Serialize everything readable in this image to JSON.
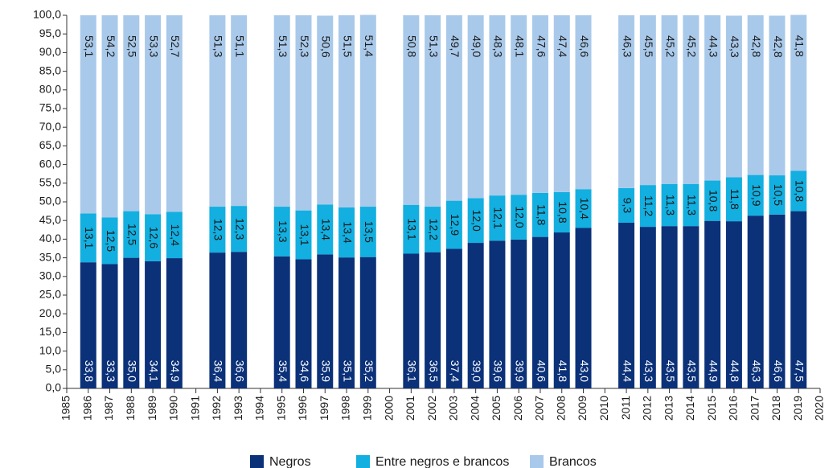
{
  "chart_data": {
    "type": "stacked_bar",
    "x": [
      1986,
      1987,
      1988,
      1989,
      1990,
      1992,
      1993,
      1995,
      1996,
      1997,
      1998,
      1999,
      2001,
      2002,
      2003,
      2004,
      2005,
      2006,
      2007,
      2008,
      2009,
      2011,
      2012,
      2013,
      2014,
      2015,
      2016,
      2017,
      2018,
      2019
    ],
    "series": [
      {
        "name": "Negros",
        "color": "#0b3179",
        "values": [
          33.8,
          33.3,
          35.0,
          34.1,
          34.9,
          36.4,
          36.6,
          35.4,
          34.6,
          35.9,
          35.1,
          35.2,
          36.1,
          36.5,
          37.4,
          39.0,
          39.6,
          39.9,
          40.6,
          41.8,
          43.0,
          44.4,
          43.3,
          43.5,
          43.5,
          44.9,
          44.8,
          46.3,
          46.6,
          47.5
        ],
        "value_labels": [
          "33,8",
          "33,3",
          "35,0",
          "34,1",
          "34,9",
          "36,4",
          "36,6",
          "35,4",
          "34,6",
          "35,9",
          "35,1",
          "35,2",
          "36,1",
          "36,5",
          "37,4",
          "39,0",
          "39,6",
          "39,9",
          "40,6",
          "41,8",
          "43,0",
          "44,4",
          "43,3",
          "43,5",
          "43,5",
          "44,9",
          "44,8",
          "46,3",
          "46,6",
          "47,5"
        ]
      },
      {
        "name": "Entre negros e brancos",
        "color": "#12afe0",
        "values": [
          13.1,
          12.5,
          12.5,
          12.6,
          12.4,
          12.3,
          12.3,
          13.3,
          13.1,
          13.4,
          13.4,
          13.5,
          13.1,
          12.2,
          12.9,
          12.0,
          12.1,
          12.0,
          11.8,
          10.8,
          10.4,
          9.3,
          11.2,
          11.3,
          11.3,
          10.8,
          11.8,
          10.9,
          10.5,
          10.8
        ],
        "value_labels": [
          "13,1",
          "12,5",
          "12,5",
          "12,6",
          "12,4",
          "12,3",
          "12,3",
          "13,3",
          "13,1",
          "13,4",
          "13,4",
          "13,5",
          "13,1",
          "12,2",
          "12,9",
          "12,0",
          "12,1",
          "12,0",
          "11,8",
          "10,8",
          "10,4",
          "9,3",
          "11,2",
          "11,3",
          "11,3",
          "10,8",
          "11,8",
          "10,9",
          "10,5",
          "10,8"
        ]
      },
      {
        "name": "Brancos",
        "color": "#a9c9ea",
        "values": [
          53.1,
          54.2,
          52.5,
          53.3,
          52.7,
          51.3,
          51.1,
          51.3,
          52.3,
          50.6,
          51.5,
          51.4,
          50.8,
          51.3,
          49.7,
          49.0,
          48.3,
          48.1,
          47.6,
          47.4,
          46.6,
          46.3,
          45.5,
          45.2,
          45.2,
          44.3,
          43.3,
          42.8,
          42.8,
          41.8
        ],
        "value_labels": [
          "53,1",
          "54,2",
          "52,5",
          "53,3",
          "52,7",
          "51,3",
          "51,1",
          "51,3",
          "52,3",
          "50,6",
          "51,5",
          "51,4",
          "50,8",
          "51,3",
          "49,7",
          "49,0",
          "48,3",
          "48,1",
          "47,6",
          "47,4",
          "46,6",
          "46,3",
          "45,5",
          "45,2",
          "45,2",
          "44,3",
          "43,3",
          "42,8",
          "42,8",
          "41,8"
        ]
      }
    ],
    "xlim": [
      1985,
      2020
    ],
    "xticks": [
      1985,
      1986,
      1987,
      1988,
      1989,
      1990,
      1991,
      1992,
      1993,
      1994,
      1995,
      1996,
      1997,
      1998,
      1999,
      2000,
      2001,
      2002,
      2003,
      2004,
      2005,
      2006,
      2007,
      2008,
      2009,
      2010,
      2011,
      2012,
      2013,
      2014,
      2015,
      2016,
      2017,
      2018,
      2019,
      2020
    ],
    "ylim": [
      0,
      100
    ],
    "yticks": [
      {
        "value": 0,
        "label": "0,0"
      },
      {
        "value": 5,
        "label": "5,0"
      },
      {
        "value": 10,
        "label": "10,0"
      },
      {
        "value": 15,
        "label": "15,0"
      },
      {
        "value": 20,
        "label": "20,0"
      },
      {
        "value": 25,
        "label": "25,0"
      },
      {
        "value": 30,
        "label": "30,0"
      },
      {
        "value": 35,
        "label": "35,0"
      },
      {
        "value": 40,
        "label": "40,0"
      },
      {
        "value": 45,
        "label": "45,0"
      },
      {
        "value": 50,
        "label": "50,0"
      },
      {
        "value": 55,
        "label": "55,0"
      },
      {
        "value": 60,
        "label": "60,0"
      },
      {
        "value": 65,
        "label": "65,0"
      },
      {
        "value": 70,
        "label": "70,0"
      },
      {
        "value": 75,
        "label": "75,0"
      },
      {
        "value": 80,
        "label": "80,0"
      },
      {
        "value": 85,
        "label": "85,0"
      },
      {
        "value": 90,
        "label": "90,0"
      },
      {
        "value": 95,
        "label": "95,0"
      },
      {
        "value": 100,
        "label": "100,0"
      }
    ],
    "grid": false,
    "legend": "bottom"
  }
}
